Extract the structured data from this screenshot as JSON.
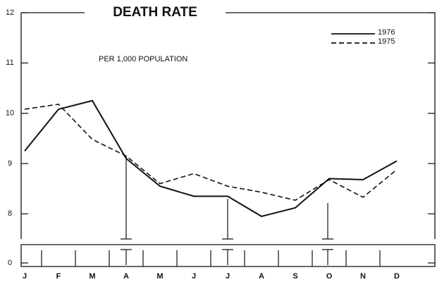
{
  "chart_data": {
    "type": "line",
    "title": "DEATH RATE",
    "subtitle": "PER 1,000 POPULATION",
    "categories": [
      "J",
      "F",
      "M",
      "A",
      "M",
      "J",
      "J",
      "A",
      "S",
      "O",
      "N",
      "D"
    ],
    "series": [
      {
        "name": "1976",
        "color": "#111111",
        "dash": false,
        "values": [
          9.25,
          10.08,
          10.25,
          9.1,
          8.55,
          8.35,
          8.35,
          7.95,
          8.12,
          8.7,
          8.68,
          9.05
        ]
      },
      {
        "name": "1975",
        "color": "#111111",
        "dash": true,
        "values": [
          10.08,
          10.18,
          9.48,
          9.15,
          8.6,
          8.8,
          8.55,
          8.43,
          8.27,
          8.68,
          8.33,
          8.88
        ]
      }
    ],
    "ylim": [
      7.5,
      12
    ],
    "yticks": [
      0,
      8,
      9,
      10,
      11,
      12
    ],
    "axis_break": true,
    "grid": false
  }
}
